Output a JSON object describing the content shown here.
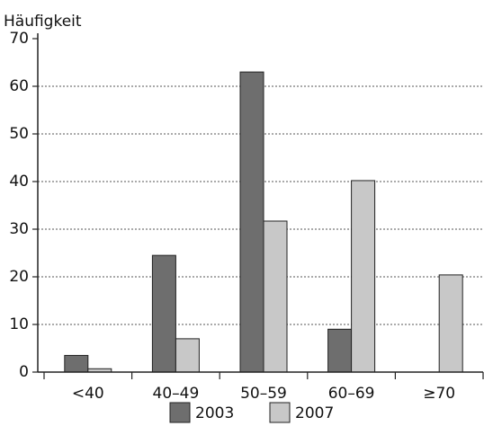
{
  "chart_data": {
    "type": "bar",
    "y_label": "Häufigkeit",
    "categories": [
      "<40",
      "40–49",
      "50–59",
      "60–69",
      "≥70"
    ],
    "series": [
      {
        "name": "2003",
        "color": "#6e6e6e",
        "values": [
          3.5,
          24.5,
          63,
          9,
          0
        ]
      },
      {
        "name": "2007",
        "color": "#c8c8c8",
        "values": [
          0.7,
          7,
          31.7,
          40.2,
          20.4
        ]
      }
    ],
    "ylim": [
      0,
      70
    ],
    "yticks": [
      0,
      10,
      20,
      30,
      40,
      50,
      60,
      70
    ],
    "grid": true
  }
}
